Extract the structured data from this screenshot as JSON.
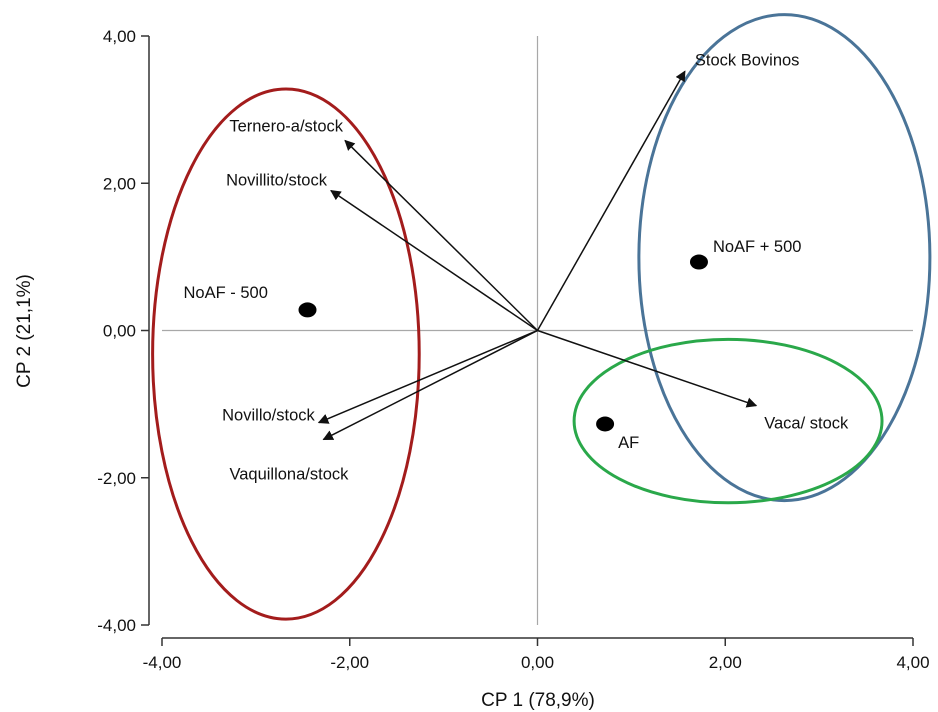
{
  "chart_data": {
    "type": "scatter",
    "subtype": "biplot",
    "title": "",
    "xlabel": "CP 1 (78,9%)",
    "ylabel": "CP 2 (21,1%)",
    "xlim": [
      -4,
      4
    ],
    "ylim": [
      -4,
      4
    ],
    "xticks": [
      -4,
      -2,
      0,
      2,
      4
    ],
    "yticks": [
      -4,
      -2,
      0,
      2,
      4
    ],
    "xtick_labels": [
      "-4,00",
      "-2,00",
      "0,00",
      "2,00",
      "4,00"
    ],
    "ytick_labels": [
      "-4,00",
      "-2,00",
      "0,00",
      "2,00",
      "4,00"
    ],
    "grid": false,
    "reference_lines": {
      "x": 0,
      "y": 0
    },
    "points": [
      {
        "label": "NoAF - 500",
        "x": -2.45,
        "y": 0.28
      },
      {
        "label": "NoAF + 500",
        "x": 1.72,
        "y": 0.93
      },
      {
        "label": "AF",
        "x": 0.72,
        "y": -1.27
      }
    ],
    "vectors": [
      {
        "label": "Stock Bovinos",
        "x": 1.57,
        "y": 3.52
      },
      {
        "label": "Ternero-a/stock",
        "x": -2.05,
        "y": 2.58
      },
      {
        "label": "Novillito/stock",
        "x": -2.2,
        "y": 1.9
      },
      {
        "label": "Novillo/stock",
        "x": -2.33,
        "y": -1.25
      },
      {
        "label": "Vaquillona/stock",
        "x": -2.28,
        "y": -1.48
      },
      {
        "label": "Vaca/ stock",
        "x": 2.33,
        "y": -1.02
      }
    ],
    "ellipses": [
      {
        "color": "#a31c1c",
        "cx": -2.68,
        "cy": -0.32,
        "rx": 1.42,
        "ry": 3.6
      },
      {
        "color": "#4a7498",
        "cx": 2.63,
        "cy": 0.99,
        "rx": 1.55,
        "ry": 3.3
      },
      {
        "color": "#2aa84a",
        "cx": 2.03,
        "cy": -1.23,
        "rx": 1.64,
        "ry": 1.11
      }
    ],
    "colors": {
      "axis": "#333333",
      "refline": "#a8a8a8",
      "vector": "#111111",
      "point": "#000000"
    }
  }
}
